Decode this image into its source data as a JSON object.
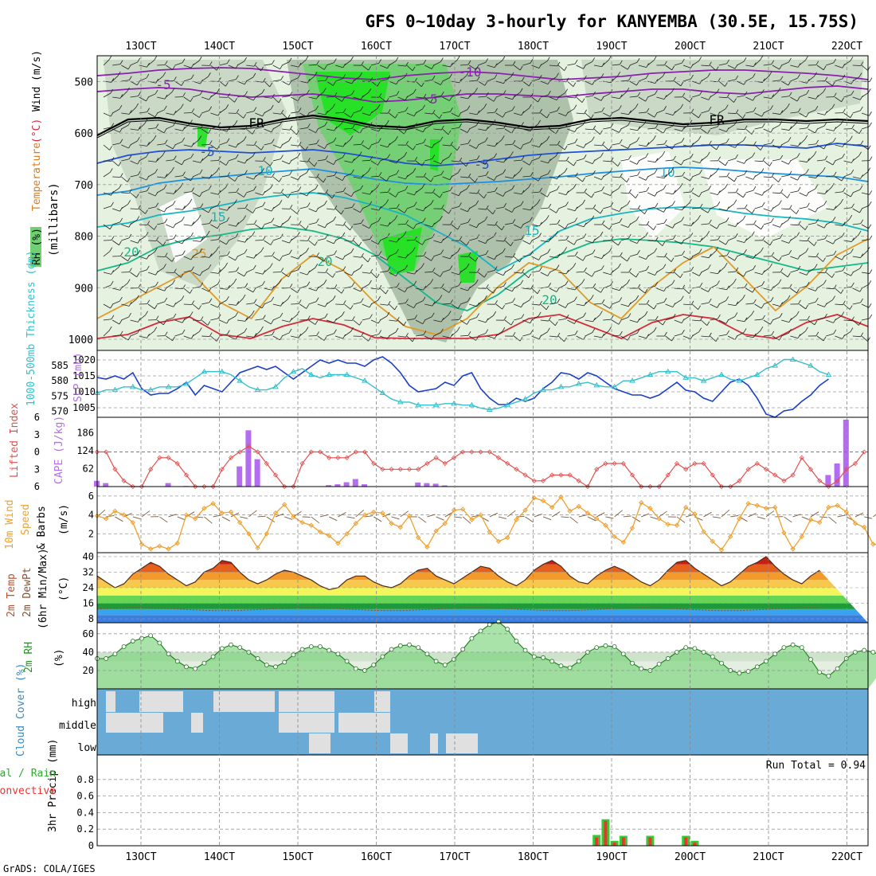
{
  "title": "GFS 0~10day 3-hourly for KANYEMBA (30.5E, 15.75S)",
  "credit": "GrADS: COLA/IGES",
  "run_total_text": "Run Total = 0.94",
  "colors": {
    "rh_light": "#e6f2e0",
    "rh_mid": "#c5d6c3",
    "rh_dark": "#a7bba5",
    "rh_green": "#6fd16f",
    "rh_bright": "#1fe21f",
    "slp_line": "#1b3ec9",
    "thick_line": "#35c0cc",
    "li_line": "#e54d4d",
    "cape_bar": "#b46cf0",
    "wind_line": "#f0a030",
    "barb": "#7a5a3a",
    "rh2m_fill": "#6fd16f",
    "cloud_bg": "#6aaad6",
    "cloud_fill": "#e0e0e0",
    "precip_total": "#33cc33",
    "precip_conv": "#ee3333"
  },
  "chart_data": [
    {
      "id": "upper-air",
      "type": "heatmap",
      "title": "GFS 0~10day 3-hourly for KANYEMBA (30.5E, 15.75S)",
      "x_tick_labels": [
        "13OCT",
        "14OCT",
        "15OCT",
        "16OCT",
        "17OCT",
        "18OCT",
        "19OCT",
        "20OCT",
        "21OCT",
        "22OCT"
      ],
      "y_ticks": [
        500,
        600,
        700,
        800,
        900,
        1000
      ],
      "ylim": [
        450,
        1000
      ],
      "ylabel_parts": [
        "RH (%)",
        "Temperature",
        "(°C)",
        "Wind",
        "(m/s)",
        "(millibars)"
      ],
      "contour_labels": [
        "-10",
        "-5",
        "-5",
        "FR",
        "FR",
        "-5",
        "-5",
        "10",
        "10",
        "15",
        "15",
        "20",
        "20",
        "25",
        "20"
      ]
    },
    {
      "id": "slp-thickness",
      "type": "line",
      "ylabel_left": "1000-500mb Thickness (dm)",
      "ylabel_right": "SLP (mb)",
      "left_ticks": [
        570,
        575,
        580,
        585
      ],
      "right_ticks": [
        1005,
        1010,
        1015,
        1020
      ],
      "series": [
        {
          "name": "SLP",
          "axis": "right",
          "values": [
            1014.5,
            1014,
            1015,
            1014,
            1016,
            1011,
            1009,
            1009.5,
            1009.5,
            1011,
            1013,
            1009,
            1012,
            1011,
            1010,
            1013,
            1016,
            1017,
            1018,
            1017,
            1018,
            1016,
            1014,
            1016,
            1018,
            1020,
            1019,
            1020,
            1019,
            1019,
            1018,
            1020,
            1021,
            1019,
            1016,
            1012,
            1010,
            1010.5,
            1011,
            1013,
            1012,
            1015,
            1016,
            1011,
            1008,
            1006,
            1006,
            1008,
            1007,
            1008,
            1011,
            1013,
            1016,
            1015.5,
            1014,
            1016,
            1015,
            1013,
            1011,
            1010,
            1009,
            1009,
            1008,
            1009,
            1011,
            1013,
            1010.5,
            1010,
            1008,
            1007,
            1010,
            1013,
            1014,
            1012,
            1008,
            1003,
            1002,
            1004,
            1004.5,
            1007,
            1009,
            1012,
            1014
          ]
        },
        {
          "name": "1000-500mb Thickness",
          "axis": "left",
          "values": [
            576,
            577,
            577,
            578,
            578,
            577,
            577,
            578,
            578,
            578,
            579,
            581,
            583,
            583,
            583,
            582,
            580,
            578,
            577,
            577,
            578,
            581,
            583,
            584,
            582,
            581,
            582,
            582,
            582,
            581,
            580,
            578,
            576,
            574,
            573,
            573,
            572,
            572,
            572,
            572.5,
            572.5,
            572,
            572,
            571,
            570.5,
            571,
            572,
            573,
            574,
            576,
            577,
            577,
            578,
            578,
            579,
            579.5,
            578.5,
            578,
            578,
            580,
            580,
            581,
            582,
            583,
            583,
            583,
            581,
            581,
            580,
            581,
            582,
            580.5,
            580,
            581,
            582,
            584,
            585,
            587,
            587,
            586,
            585,
            583,
            582
          ]
        }
      ]
    },
    {
      "id": "li-cape",
      "type": "bar",
      "ylabel_left": "Lifted Index",
      "ylabel_right": "CAPE (J/kg)",
      "li_ticks": [
        -6,
        -3,
        0,
        3,
        6
      ],
      "cape_ticks": [
        62,
        124,
        186
      ],
      "lifted_index": [
        0,
        0,
        3,
        5,
        6,
        6,
        3,
        1,
        1,
        2,
        4,
        6,
        6,
        6,
        3,
        1,
        0,
        -1,
        0,
        2,
        4,
        6,
        6,
        2,
        0,
        0,
        1,
        1,
        1,
        0,
        0,
        2,
        3,
        3,
        3,
        3,
        3,
        2,
        1,
        2,
        1,
        0,
        0,
        0,
        0,
        1,
        2,
        3,
        4,
        5,
        5,
        4,
        4,
        4,
        5,
        6,
        3,
        2,
        2,
        2,
        4,
        6,
        6,
        6,
        4,
        2,
        3,
        2,
        2,
        4,
        6,
        6,
        5,
        3,
        2,
        3,
        4,
        5,
        4,
        1,
        3,
        5,
        6,
        5,
        3,
        2,
        0
      ],
      "cape": [
        20,
        12,
        0,
        0,
        0,
        0,
        0,
        0,
        12,
        0,
        2,
        0,
        0,
        0,
        0,
        0,
        70,
        195,
        95,
        0,
        0,
        0,
        0,
        0,
        0,
        0,
        5,
        8,
        15,
        26,
        8,
        0,
        0,
        0,
        0,
        0,
        14,
        12,
        10,
        4,
        0,
        0,
        0,
        0,
        0,
        0,
        0,
        0,
        0,
        0,
        0,
        0,
        0,
        0,
        0,
        0,
        0,
        0,
        0,
        0,
        0,
        0,
        0,
        0,
        0,
        0,
        0,
        0,
        0,
        0,
        0,
        0,
        0,
        0,
        0,
        0,
        0,
        0,
        0,
        0,
        0,
        0,
        40,
        80,
        232,
        0,
        0,
        0,
        0,
        0,
        0,
        0,
        15,
        38
      ]
    },
    {
      "id": "wind10m",
      "type": "line",
      "ylabel": "10m Wind Speed & Barbs (m/s)",
      "ylabel_parts": [
        "10m Wind",
        "Speed",
        "& Barbs",
        "(m/s)"
      ],
      "ticks": [
        2,
        4,
        6
      ],
      "ylim": [
        0,
        7
      ],
      "values": [
        3.9,
        3.6,
        4.4,
        4.0,
        3.2,
        0.9,
        0.4,
        0.7,
        0.4,
        1.0,
        4.0,
        3.6,
        4.7,
        5.2,
        4.2,
        4.3,
        3.2,
        2.0,
        0.5,
        2.0,
        4.2,
        5.1,
        3.8,
        3.2,
        2.9,
        2.2,
        1.8,
        1.0,
        2.0,
        3.1,
        4.0,
        4.3,
        4.2,
        3.1,
        2.7,
        3.9,
        1.6,
        0.6,
        2.3,
        3.1,
        4.5,
        4.6,
        3.5,
        4.0,
        2.2,
        1.2,
        1.6,
        3.5,
        4.5,
        5.8,
        5.5,
        4.8,
        5.9,
        4.4,
        4.9,
        4.2,
        3.6,
        2.9,
        1.7,
        1.1,
        2.6,
        5.3,
        4.7,
        3.6,
        3.0,
        2.9,
        4.8,
        4.1,
        2.2,
        1.2,
        0.3,
        1.7,
        3.6,
        5.2,
        5.0,
        4.7,
        4.8,
        2.1,
        0.4,
        1.7,
        3.5,
        3.2,
        4.8,
        5.0,
        4.3,
        3.1,
        2.7,
        0.9,
        0.8,
        1.6,
        3.8,
        6.5
      ]
    },
    {
      "id": "temp2m",
      "type": "area",
      "ylabel_parts": [
        "2m Temp",
        "2m DewPt",
        "(6hr Min/Max)",
        "(°C)"
      ],
      "ticks": [
        8,
        16,
        24,
        32,
        40
      ],
      "ylim": [
        6,
        42
      ],
      "temp": [
        30,
        27,
        24,
        26,
        31,
        34,
        37,
        35,
        31,
        28,
        25,
        27,
        32,
        34,
        38,
        37,
        32,
        28,
        26,
        28,
        31,
        33,
        32,
        30,
        28,
        25,
        23,
        24,
        28,
        30,
        30,
        27,
        25,
        24,
        26,
        30,
        33,
        34,
        30,
        28,
        26,
        29,
        32,
        35,
        34,
        30,
        27,
        25,
        28,
        33,
        36,
        38,
        35,
        30,
        27,
        26,
        30,
        33,
        35,
        33,
        30,
        27,
        25,
        28,
        33,
        37,
        38,
        34,
        31,
        28,
        25,
        27,
        31,
        35,
        37,
        40,
        35,
        31,
        28,
        26,
        30,
        33
      ]
    },
    {
      "id": "rh2m",
      "type": "area",
      "ylabel_parts": [
        "2m RH",
        "(%)"
      ],
      "ticks": [
        20,
        40,
        60
      ],
      "ylim": [
        0,
        72
      ],
      "values": [
        33,
        33,
        38,
        46,
        52,
        55,
        58,
        50,
        38,
        30,
        24,
        22,
        28,
        35,
        44,
        48,
        45,
        40,
        33,
        26,
        24,
        29,
        37,
        43,
        46,
        46,
        42,
        38,
        30,
        22,
        20,
        26,
        35,
        43,
        47,
        48,
        45,
        38,
        30,
        26,
        32,
        43,
        55,
        63,
        70,
        73,
        65,
        52,
        42,
        35,
        34,
        30,
        25,
        23,
        30,
        40,
        45,
        47,
        46,
        38,
        28,
        22,
        20,
        27,
        33,
        40,
        45,
        44,
        40,
        35,
        28,
        20,
        17,
        19,
        24,
        30,
        38,
        45,
        48,
        45,
        32,
        18,
        14,
        22,
        33,
        40,
        42,
        40,
        36,
        40,
        46
      ]
    },
    {
      "id": "cloud",
      "type": "heatmap",
      "ylabel": "Cloud Cover (%)",
      "layers": [
        "high",
        "middle",
        "low"
      ]
    },
    {
      "id": "precip",
      "type": "bar",
      "ylabel": "3hr Precip (mm)",
      "legend": [
        "Total / Rain",
        "Convective"
      ],
      "ticks": [
        0.2,
        0.4,
        0.6,
        0.8
      ],
      "tick_labels": [
        "0",
        "0.2",
        "0.4",
        "0.6",
        "0.8"
      ],
      "ylim": [
        0,
        1
      ],
      "run_total": 0.94,
      "bars": [
        {
          "x": 56,
          "total": 0.13,
          "convective": 0.1
        },
        {
          "x": 57,
          "total": 0.32,
          "convective": 0.3
        },
        {
          "x": 58,
          "total": 0.06,
          "convective": 0.04
        },
        {
          "x": 59,
          "total": 0.12,
          "convective": 0.1
        },
        {
          "x": 62,
          "total": 0.12,
          "convective": 0.1
        },
        {
          "x": 66,
          "total": 0.12,
          "convective": 0.1
        },
        {
          "x": 67,
          "total": 0.06,
          "convective": 0.04
        }
      ]
    }
  ]
}
